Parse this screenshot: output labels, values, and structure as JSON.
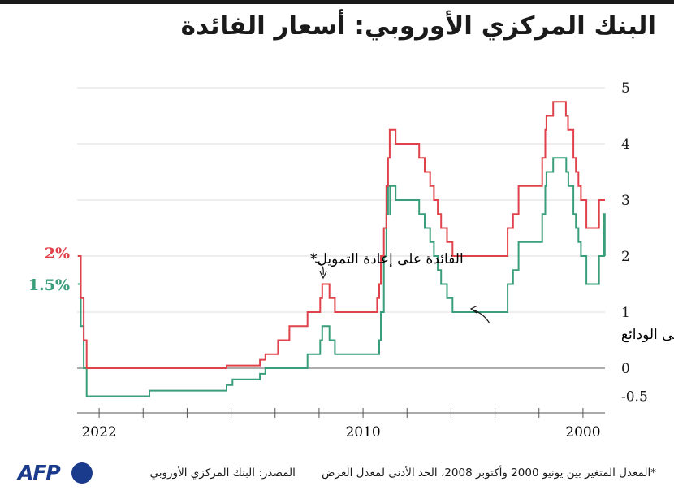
{
  "title": "البنك المركزي الأوروبي: أسعار الفائدة",
  "footnote": "*المعدل المتغير بين يونيو 2000 وأكتوبر 2008، الحد الأدنى لمعدل العرض",
  "source": "المصدر: البنك المركزي الأوروبي",
  "logo": {
    "text": "AFP",
    "icon": "globe-icon"
  },
  "chart_data": {
    "type": "line",
    "x_axis": "time, reversed (2022 left, 2000 right)",
    "x_tick_labels": [
      "2022",
      "2010",
      "2000"
    ],
    "y_tick_labels": [
      "5",
      "4",
      "3",
      "2",
      "1",
      "0",
      "-0.5"
    ],
    "ylim": [
      -0.5,
      5
    ],
    "grid": true,
    "current_labels": {
      "refi": "2%",
      "deposit": "1.5%"
    },
    "series": [
      {
        "name": "الفائدة على إعادة التمويل*",
        "color": "#e0424b",
        "points": [
          [
            "1999-01-01",
            3.0
          ],
          [
            "1999-04-09",
            2.5
          ],
          [
            "1999-11-05",
            3.0
          ],
          [
            "2000-02-04",
            3.25
          ],
          [
            "2000-03-17",
            3.5
          ],
          [
            "2000-04-28",
            3.75
          ],
          [
            "2000-06-09",
            4.25
          ],
          [
            "2000-09-06",
            4.5
          ],
          [
            "2000-10-11",
            4.75
          ],
          [
            "2001-05-11",
            4.5
          ],
          [
            "2001-08-31",
            4.25
          ],
          [
            "2001-09-18",
            3.75
          ],
          [
            "2001-11-09",
            3.25
          ],
          [
            "2002-12-06",
            2.75
          ],
          [
            "2003-03-07",
            2.5
          ],
          [
            "2003-06-06",
            2.0
          ],
          [
            "2005-12-06",
            2.25
          ],
          [
            "2006-03-08",
            2.5
          ],
          [
            "2006-06-15",
            2.75
          ],
          [
            "2006-08-09",
            3.0
          ],
          [
            "2006-10-11",
            3.25
          ],
          [
            "2006-12-13",
            3.5
          ],
          [
            "2007-03-14",
            3.75
          ],
          [
            "2007-06-13",
            4.0
          ],
          [
            "2008-07-09",
            4.25
          ],
          [
            "2008-10-15",
            3.75
          ],
          [
            "2008-11-12",
            3.25
          ],
          [
            "2008-12-10",
            2.5
          ],
          [
            "2009-01-21",
            2.0
          ],
          [
            "2009-03-11",
            1.5
          ],
          [
            "2009-04-08",
            1.25
          ],
          [
            "2009-05-13",
            1.0
          ],
          [
            "2011-04-13",
            1.25
          ],
          [
            "2011-07-13",
            1.5
          ],
          [
            "2011-11-09",
            1.25
          ],
          [
            "2011-12-14",
            1.0
          ],
          [
            "2012-07-11",
            0.75
          ],
          [
            "2013-05-08",
            0.5
          ],
          [
            "2013-11-13",
            0.25
          ],
          [
            "2014-06-11",
            0.15
          ],
          [
            "2014-09-10",
            0.05
          ],
          [
            "2016-03-16",
            0.0
          ],
          [
            "2022-07-27",
            0.5
          ],
          [
            "2022-09-14",
            1.25
          ],
          [
            "2022-11-02",
            2.0
          ],
          [
            "2022-12-21",
            2.0
          ]
        ]
      },
      {
        "name": "الفائدة على الودائع",
        "color": "#3a9e7a",
        "points": [
          [
            "1999-01-01",
            2.0
          ],
          [
            "1999-01-04",
            2.75
          ],
          [
            "1999-01-22",
            2.0
          ],
          [
            "1999-04-09",
            1.5
          ],
          [
            "1999-11-05",
            2.0
          ],
          [
            "2000-02-04",
            2.25
          ],
          [
            "2000-03-17",
            2.5
          ],
          [
            "2000-04-28",
            2.75
          ],
          [
            "2000-06-09",
            3.25
          ],
          [
            "2000-09-01",
            3.5
          ],
          [
            "2000-10-06",
            3.75
          ],
          [
            "2001-05-11",
            3.5
          ],
          [
            "2001-08-31",
            3.25
          ],
          [
            "2001-09-18",
            2.75
          ],
          [
            "2001-11-09",
            2.25
          ],
          [
            "2002-12-06",
            1.75
          ],
          [
            "2003-03-07",
            1.5
          ],
          [
            "2003-06-06",
            1.0
          ],
          [
            "2005-12-06",
            1.25
          ],
          [
            "2006-03-08",
            1.5
          ],
          [
            "2006-06-15",
            1.75
          ],
          [
            "2006-08-09",
            2.0
          ],
          [
            "2006-10-11",
            2.25
          ],
          [
            "2006-12-13",
            2.5
          ],
          [
            "2007-03-14",
            2.75
          ],
          [
            "2007-06-13",
            3.0
          ],
          [
            "2008-07-09",
            3.25
          ],
          [
            "2008-10-08",
            2.75
          ],
          [
            "2008-10-09",
            3.25
          ],
          [
            "2008-11-12",
            2.75
          ],
          [
            "2008-12-10",
            2.0
          ],
          [
            "2009-01-21",
            1.0
          ],
          [
            "2009-03-11",
            0.5
          ],
          [
            "2009-04-08",
            0.25
          ],
          [
            "2011-04-13",
            0.5
          ],
          [
            "2011-07-13",
            0.75
          ],
          [
            "2011-11-09",
            0.5
          ],
          [
            "2011-12-14",
            0.25
          ],
          [
            "2012-07-11",
            0.0
          ],
          [
            "2014-06-11",
            -0.1
          ],
          [
            "2014-09-10",
            -0.2
          ],
          [
            "2015-12-09",
            -0.3
          ],
          [
            "2016-03-16",
            -0.4
          ],
          [
            "2019-09-18",
            -0.5
          ],
          [
            "2022-07-27",
            0.0
          ],
          [
            "2022-09-14",
            0.75
          ],
          [
            "2022-11-02",
            1.5
          ],
          [
            "2022-12-21",
            1.5
          ]
        ]
      }
    ]
  }
}
